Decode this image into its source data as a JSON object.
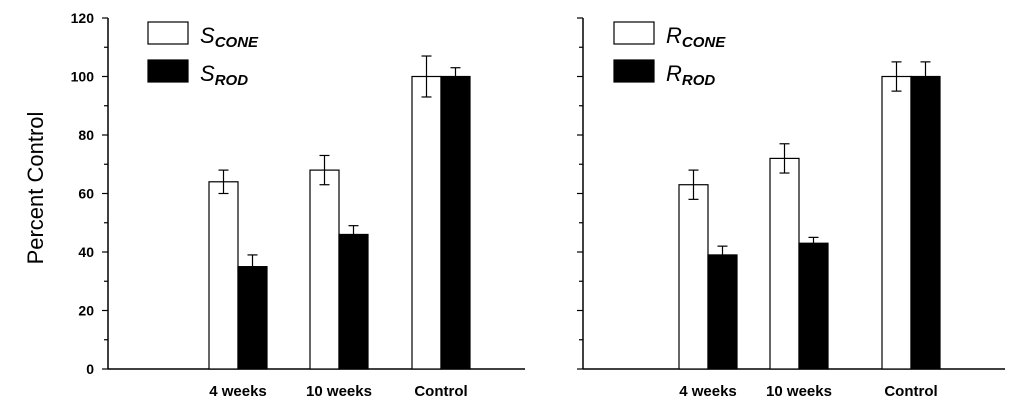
{
  "chart_data": [
    {
      "type": "bar",
      "ylabel": "Percent Control",
      "xlabel": "",
      "ylim": [
        0,
        120
      ],
      "yticks": [
        "0",
        "20",
        "40",
        "60",
        "80",
        "100",
        "120"
      ],
      "categories": [
        "4 weeks",
        "10 weeks",
        "Control"
      ],
      "series": [
        {
          "name": "S_CONE",
          "legend_main": "S",
          "legend_sub": "CONE",
          "fill": "#ffffff",
          "values": [
            64,
            68,
            100
          ],
          "errors": [
            4,
            5,
            7
          ]
        },
        {
          "name": "S_ROD",
          "legend_main": "S",
          "legend_sub": "ROD",
          "fill": "#000000",
          "values": [
            35,
            46,
            100
          ],
          "errors": [
            4,
            3,
            3
          ]
        }
      ],
      "legend_position": "top-left"
    },
    {
      "type": "bar",
      "ylabel": "",
      "xlabel": "",
      "ylim": [
        0,
        120
      ],
      "categories": [
        "4 weeks",
        "10 weeks",
        "Control"
      ],
      "series": [
        {
          "name": "R_CONE",
          "legend_main": "R",
          "legend_sub": "CONE",
          "fill": "#ffffff",
          "values": [
            63,
            72,
            100
          ],
          "errors": [
            5,
            5,
            5
          ]
        },
        {
          "name": "R_ROD",
          "legend_main": "R",
          "legend_sub": "ROD",
          "fill": "#000000",
          "values": [
            39,
            43,
            100
          ],
          "errors": [
            3,
            2,
            5
          ]
        }
      ],
      "legend_position": "top-left"
    }
  ]
}
